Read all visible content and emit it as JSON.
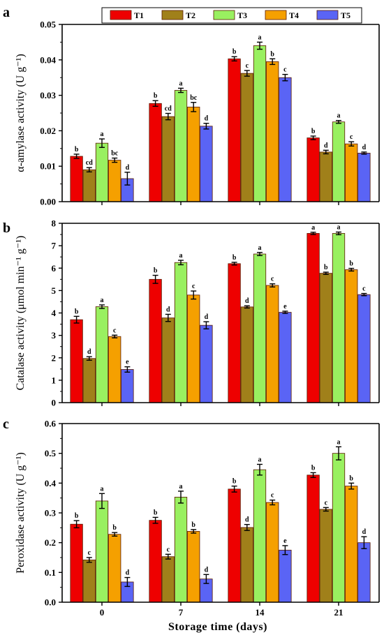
{
  "legend": [
    "T1",
    "T2",
    "T3",
    "T4",
    "T5"
  ],
  "colors": {
    "T1": "#ee0000",
    "T2": "#a0801a",
    "T3": "#99f060",
    "T4": "#f5a000",
    "T5": "#5a64f5",
    "outline": "#5a1a00",
    "error": "#000000"
  },
  "xlabel": "Storage time (days)",
  "chart_data": [
    {
      "type": "bar",
      "panel_label": "a",
      "ylabel": "α-amylase activity (U g⁻¹)",
      "ylim": [
        0,
        0.05
      ],
      "yticks": [
        "0.00",
        "0.01",
        "0.02",
        "0.03",
        "0.04",
        "0.05"
      ],
      "categories": [
        "0",
        "7",
        "14",
        "21"
      ],
      "series": [
        {
          "name": "T1",
          "values": [
            0.0128,
            0.0277,
            0.0403,
            0.018
          ],
          "errors": [
            0.0006,
            0.0008,
            0.0006,
            0.0005
          ],
          "letters": [
            "b",
            "b",
            "b",
            "b"
          ]
        },
        {
          "name": "T2",
          "values": [
            0.009,
            0.024,
            0.0362,
            0.014
          ],
          "errors": [
            0.0006,
            0.0009,
            0.0008,
            0.0005
          ],
          "letters": [
            "cd",
            "cd",
            "c",
            "d"
          ]
        },
        {
          "name": "T3",
          "values": [
            0.0165,
            0.0314,
            0.044,
            0.0225
          ],
          "errors": [
            0.0012,
            0.0006,
            0.001,
            0.0004
          ],
          "letters": [
            "a",
            "a",
            "a",
            "a"
          ]
        },
        {
          "name": "T4",
          "values": [
            0.0117,
            0.0267,
            0.0395,
            0.0163
          ],
          "errors": [
            0.0006,
            0.0013,
            0.0008,
            0.0006
          ],
          "letters": [
            "bc",
            "bc",
            "b",
            "c"
          ]
        },
        {
          "name": "T5",
          "values": [
            0.0065,
            0.0213,
            0.035,
            0.0137
          ],
          "errors": [
            0.0018,
            0.0008,
            0.0009,
            0.0003
          ],
          "letters": [
            "d",
            "d",
            "c",
            "d"
          ]
        }
      ]
    },
    {
      "type": "bar",
      "panel_label": "b",
      "ylabel": "Catalase activity (μmol min⁻¹ g⁻¹)",
      "ylim": [
        0,
        8
      ],
      "yticks": [
        "0",
        "1",
        "2",
        "3",
        "4",
        "5",
        "6",
        "7",
        "8"
      ],
      "categories": [
        "0",
        "7",
        "14",
        "21"
      ],
      "series": [
        {
          "name": "T1",
          "values": [
            3.7,
            5.5,
            6.2,
            7.55
          ],
          "errors": [
            0.15,
            0.18,
            0.06,
            0.05
          ],
          "letters": [
            "b",
            "b",
            "b",
            "a"
          ]
        },
        {
          "name": "T2",
          "values": [
            1.97,
            3.78,
            4.27,
            5.77
          ],
          "errors": [
            0.08,
            0.16,
            0.05,
            0.05
          ],
          "letters": [
            "d",
            "d",
            "d",
            "b"
          ]
        },
        {
          "name": "T3",
          "values": [
            4.28,
            6.25,
            6.63,
            7.55
          ],
          "errors": [
            0.08,
            0.1,
            0.07,
            0.06
          ],
          "letters": [
            "a",
            "a",
            "a",
            "a"
          ]
        },
        {
          "name": "T4",
          "values": [
            2.95,
            4.8,
            5.23,
            5.93
          ],
          "errors": [
            0.06,
            0.18,
            0.07,
            0.06
          ],
          "letters": [
            "c",
            "c",
            "c",
            "b"
          ]
        },
        {
          "name": "T5",
          "values": [
            1.48,
            3.45,
            4.03,
            4.82
          ],
          "errors": [
            0.12,
            0.16,
            0.05,
            0.05
          ],
          "letters": [
            "e",
            "d",
            "e",
            "c"
          ]
        }
      ]
    },
    {
      "type": "bar",
      "panel_label": "c",
      "ylabel": "Peroxidase activity (U g⁻¹)",
      "ylim": [
        0,
        0.6
      ],
      "yticks": [
        "0.0",
        "0.1",
        "0.2",
        "0.3",
        "0.4",
        "0.5",
        "0.6"
      ],
      "categories": [
        "0",
        "7",
        "14",
        "21"
      ],
      "series": [
        {
          "name": "T1",
          "values": [
            0.262,
            0.275,
            0.38,
            0.427
          ],
          "errors": [
            0.012,
            0.01,
            0.01,
            0.008
          ],
          "letters": [
            "b",
            "b",
            "b",
            "b"
          ]
        },
        {
          "name": "T2",
          "values": [
            0.142,
            0.153,
            0.251,
            0.312
          ],
          "errors": [
            0.008,
            0.008,
            0.01,
            0.006
          ],
          "letters": [
            "c",
            "c",
            "d",
            "c"
          ]
        },
        {
          "name": "T3",
          "values": [
            0.34,
            0.353,
            0.445,
            0.5
          ],
          "errors": [
            0.025,
            0.02,
            0.018,
            0.022
          ],
          "letters": [
            "a",
            "a",
            "a",
            "a"
          ]
        },
        {
          "name": "T4",
          "values": [
            0.228,
            0.238,
            0.335,
            0.39
          ],
          "errors": [
            0.006,
            0.006,
            0.008,
            0.01
          ],
          "letters": [
            "b",
            "b",
            "c",
            "b"
          ]
        },
        {
          "name": "T5",
          "values": [
            0.068,
            0.078,
            0.175,
            0.2
          ],
          "errors": [
            0.015,
            0.015,
            0.015,
            0.02
          ],
          "letters": [
            "d",
            "d",
            "e",
            "d"
          ]
        }
      ]
    }
  ]
}
